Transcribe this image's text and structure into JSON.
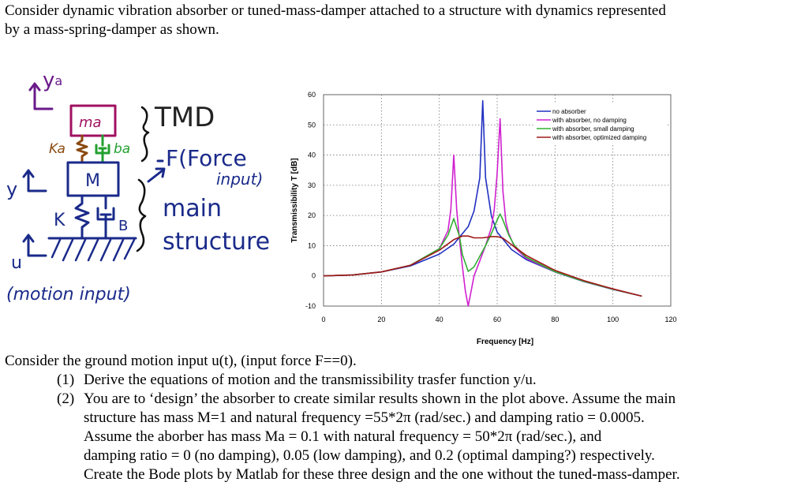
{
  "intro": {
    "line1": "Consider dynamic vibration absorber or tuned-mass-damper attached to a structure with dynamics represented",
    "line2": "by a mass-spring-damper as shown."
  },
  "sketch": {
    "ya": "y",
    "ya_sub": "a",
    "ma": "ma",
    "tmd": "TMD",
    "ka": "Ka",
    "ba": "ba",
    "force": "F(Force",
    "input": "input)",
    "y": "y",
    "m": "M",
    "main": "main",
    "structure": "structure",
    "k": "K",
    "b": "B",
    "u": "u",
    "motion": "(motion input)"
  },
  "chart_data": {
    "type": "line",
    "xlabel": "Frequency [Hz]",
    "ylabel": "Transmissibility T [dB]",
    "xlim": [
      0,
      120
    ],
    "ylim": [
      -10,
      60
    ],
    "xticks": [
      0,
      20,
      40,
      60,
      80,
      100,
      120
    ],
    "yticks": [
      -10,
      0,
      10,
      20,
      30,
      40,
      50,
      60
    ],
    "grid": true,
    "legend_position": "top-right",
    "series": [
      {
        "name": "no absorber",
        "color": "#2030c0",
        "x": [
          0,
          10,
          20,
          30,
          40,
          45,
          50,
          52,
          54,
          55,
          56,
          58,
          60,
          65,
          70,
          80,
          90,
          100,
          110
        ],
        "y": [
          0,
          0.3,
          1.3,
          3.3,
          7.2,
          10.5,
          16.3,
          21.5,
          32.5,
          58,
          32.5,
          19.8,
          14.5,
          8.7,
          5.4,
          1.3,
          -1.9,
          -4.5,
          -6.7
        ]
      },
      {
        "name": "with absorber, no damping",
        "color": "#d020d0",
        "x": [
          0,
          10,
          20,
          30,
          40,
          43,
          44,
          45,
          46,
          47,
          48,
          49,
          50,
          51,
          52,
          54,
          56,
          58,
          59,
          60,
          61,
          62,
          63,
          64,
          66,
          70,
          80,
          90,
          100,
          110
        ],
        "y": [
          0,
          0.3,
          1.3,
          3.5,
          9,
          15,
          22,
          40,
          22,
          12,
          3,
          -5,
          -10,
          -5,
          0,
          5,
          10,
          16,
          22,
          34,
          52,
          28,
          18,
          14,
          9.5,
          5.8,
          1.4,
          -1.8,
          -4.4,
          -6.7
        ]
      },
      {
        "name": "with absorber, small damping",
        "color": "#30b030",
        "x": [
          0,
          10,
          20,
          30,
          40,
          43,
          45,
          47,
          48,
          50,
          52,
          54,
          56,
          58,
          60,
          61,
          62,
          64,
          66,
          70,
          80,
          90,
          100,
          110
        ],
        "y": [
          0,
          0.3,
          1.3,
          3.5,
          9,
          13.5,
          19,
          13,
          7,
          1.5,
          3,
          6.5,
          10,
          14,
          18.5,
          20.5,
          18.5,
          13.5,
          10,
          6.2,
          1.4,
          -1.8,
          -4.4,
          -6.7
        ]
      },
      {
        "name": "with absorber, optimized damping",
        "color": "#a01818",
        "x": [
          0,
          10,
          20,
          30,
          40,
          45,
          48,
          50,
          52,
          55,
          58,
          60,
          62,
          65,
          70,
          80,
          90,
          100,
          110
        ],
        "y": [
          0,
          0.3,
          1.3,
          3.5,
          8.5,
          12,
          13.2,
          13.2,
          12.6,
          12.6,
          13,
          13,
          12.5,
          10.3,
          6.8,
          1.8,
          -1.6,
          -4.3,
          -6.7
        ]
      }
    ]
  },
  "question": {
    "lead": "Consider the ground motion input u(t), (input force F==0).",
    "items": [
      {
        "num": "(1)",
        "lines": [
          "Derive the equations of motion and the transmissibility trasfer function  y/u."
        ]
      },
      {
        "num": "(2)",
        "lines": [
          "You are to ‘design’ the absorber to create similar results shown in the plot above. Assume the main",
          "structure has mass M=1 and natural frequency =55*2π (rad/sec.) and damping ratio = 0.0005.",
          "Assume the aborber has mass Ma = 0.1 with natural frequency = 50*2π (rad/sec.), and",
          "damping ratio = 0 (no damping), 0.05 (low damping), and 0.2 (optimal damping?) respectively.",
          "Create the Bode plots by Matlab for these three design and the one without the tuned-mass-damper."
        ]
      }
    ]
  }
}
